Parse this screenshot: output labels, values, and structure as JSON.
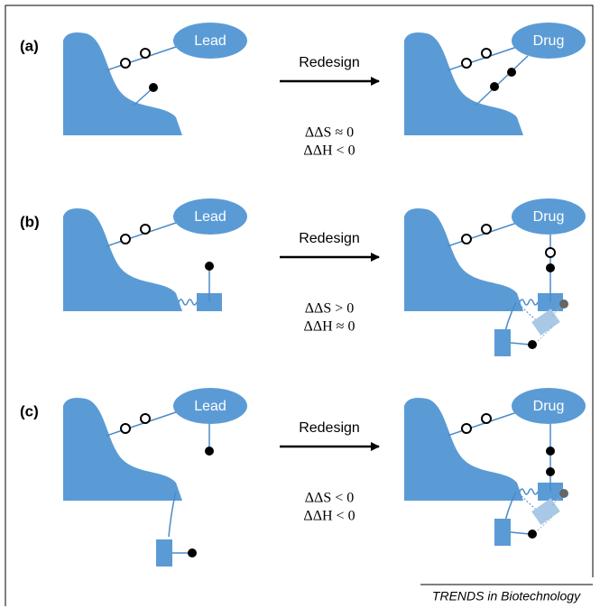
{
  "panels": [
    {
      "label": "(a)",
      "left": "Lead",
      "right": "Drug",
      "arrow": "Redesign",
      "entropy": "ΔΔS ≈ 0",
      "enthalpy": "ΔΔH < 0"
    },
    {
      "label": "(b)",
      "left": "Lead",
      "right": "Drug",
      "arrow": "Redesign",
      "entropy": "ΔΔS > 0",
      "enthalpy": "ΔΔH ≈ 0"
    },
    {
      "label": "(c)",
      "left": "Lead",
      "right": "Drug",
      "arrow": "Redesign",
      "entropy": "ΔΔS < 0",
      "enthalpy": "ΔΔH < 0"
    }
  ],
  "footer": "TRENDS in Biotechnology"
}
